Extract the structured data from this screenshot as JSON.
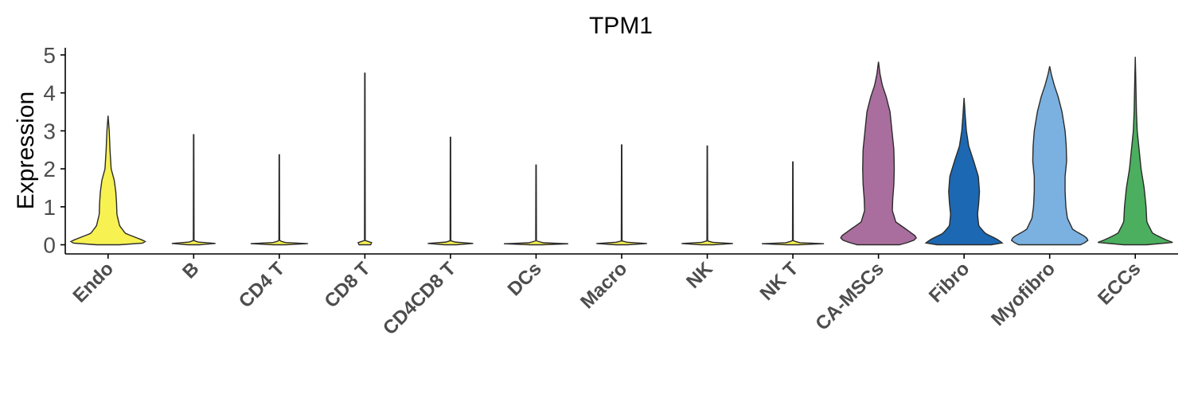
{
  "chart_data": {
    "type": "violin",
    "title": "TPM1",
    "ylabel": "Expression",
    "xlabel": "",
    "ylim": [
      -0.2,
      5.2
    ],
    "yticks": [
      0,
      1,
      2,
      3,
      4,
      5
    ],
    "grid": false,
    "legend": "none",
    "categories": [
      "Endo",
      "B",
      "CD4 T",
      "CD8 T",
      "CD4CD8 T",
      "DCs",
      "Macro",
      "NK",
      "NK T",
      "CA-MSCs",
      "Fibro",
      "Myofibro",
      "ECCs"
    ],
    "series": [
      {
        "category": "Endo",
        "color": "#F7F152",
        "max": 3.4,
        "density": [
          [
            0,
            0.3
          ],
          [
            0.05,
            1.0
          ],
          [
            0.1,
            0.95
          ],
          [
            0.2,
            0.7
          ],
          [
            0.3,
            0.45
          ],
          [
            0.5,
            0.3
          ],
          [
            0.8,
            0.23
          ],
          [
            1.1,
            0.22
          ],
          [
            1.4,
            0.2
          ],
          [
            1.7,
            0.16
          ],
          [
            2.0,
            0.08
          ],
          [
            2.5,
            0.05
          ],
          [
            3.0,
            0.03
          ],
          [
            3.4,
            0
          ]
        ]
      },
      {
        "category": "B",
        "color": "#F7F152",
        "max": 2.9,
        "density": [
          [
            0,
            0.15
          ],
          [
            0.02,
            1.0
          ],
          [
            0.05,
            0.2
          ],
          [
            0.1,
            0.01
          ],
          [
            2.9,
            0.005
          ]
        ]
      },
      {
        "category": "CD4 T",
        "color": "#F7F152",
        "max": 2.37,
        "density": [
          [
            0,
            0.15
          ],
          [
            0.02,
            1.0
          ],
          [
            0.05,
            0.2
          ],
          [
            0.1,
            0.01
          ],
          [
            2.37,
            0.005
          ]
        ]
      },
      {
        "category": "CD8 T",
        "color": "#F7F152",
        "max": 4.52,
        "density": [
          [
            0,
            0.15
          ],
          [
            0.02,
            1.0
          ],
          [
            0.05,
            0.2
          ],
          [
            0.1,
            0.01
          ],
          [
            4.52,
            0.005
          ]
        ]
      },
      {
        "category": "CD4CD8 T",
        "color": "#F7F152",
        "max": 2.83,
        "density": [
          [
            0,
            0.15
          ],
          [
            0.02,
            1.0
          ],
          [
            0.05,
            0.2
          ],
          [
            0.1,
            0.01
          ],
          [
            2.83,
            0.005
          ]
        ]
      },
      {
        "category": "DCs",
        "color": "#F7F152",
        "max": 2.1,
        "density": [
          [
            0,
            0.15
          ],
          [
            0.02,
            1.0
          ],
          [
            0.05,
            0.2
          ],
          [
            0.1,
            0.01
          ],
          [
            2.1,
            0.005
          ]
        ]
      },
      {
        "category": "Macro",
        "color": "#F7F152",
        "max": 2.63,
        "density": [
          [
            0,
            0.15
          ],
          [
            0.02,
            1.0
          ],
          [
            0.05,
            0.2
          ],
          [
            0.1,
            0.01
          ],
          [
            2.63,
            0.005
          ]
        ]
      },
      {
        "category": "NK",
        "color": "#F7F152",
        "max": 2.6,
        "density": [
          [
            0,
            0.15
          ],
          [
            0.02,
            1.0
          ],
          [
            0.05,
            0.2
          ],
          [
            0.1,
            0.01
          ],
          [
            2.6,
            0.005
          ]
        ]
      },
      {
        "category": "NK T",
        "color": "#F7F152",
        "max": 2.18,
        "density": [
          [
            0,
            0.15
          ],
          [
            0.02,
            1.0
          ],
          [
            0.05,
            0.2
          ],
          [
            0.1,
            0.01
          ],
          [
            2.18,
            0.005
          ]
        ]
      },
      {
        "category": "CA-MSCs",
        "color": "#A96E9E",
        "max": 4.82,
        "density": [
          [
            0,
            0.55
          ],
          [
            0.1,
            0.9
          ],
          [
            0.2,
            1.0
          ],
          [
            0.35,
            0.8
          ],
          [
            0.6,
            0.45
          ],
          [
            0.9,
            0.36
          ],
          [
            1.2,
            0.37
          ],
          [
            1.6,
            0.4
          ],
          [
            2.0,
            0.41
          ],
          [
            2.5,
            0.4
          ],
          [
            3.0,
            0.35
          ],
          [
            3.5,
            0.3
          ],
          [
            3.9,
            0.2
          ],
          [
            4.2,
            0.1
          ],
          [
            4.5,
            0.04
          ],
          [
            4.82,
            0
          ]
        ]
      },
      {
        "category": "Fibro",
        "color": "#1C68B2",
        "max": 3.87,
        "density": [
          [
            0,
            0.7
          ],
          [
            0.05,
            1.0
          ],
          [
            0.15,
            0.85
          ],
          [
            0.3,
            0.55
          ],
          [
            0.5,
            0.38
          ],
          [
            0.8,
            0.35
          ],
          [
            1.1,
            0.38
          ],
          [
            1.4,
            0.4
          ],
          [
            1.8,
            0.37
          ],
          [
            2.2,
            0.25
          ],
          [
            2.6,
            0.12
          ],
          [
            3.0,
            0.06
          ],
          [
            3.4,
            0.03
          ],
          [
            3.87,
            0
          ]
        ]
      },
      {
        "category": "Myofibro",
        "color": "#7BB1E0",
        "max": 4.7,
        "density": [
          [
            0,
            0.8
          ],
          [
            0.1,
            1.0
          ],
          [
            0.2,
            0.95
          ],
          [
            0.4,
            0.6
          ],
          [
            0.7,
            0.46
          ],
          [
            1.0,
            0.42
          ],
          [
            1.4,
            0.4
          ],
          [
            1.8,
            0.4
          ],
          [
            2.2,
            0.44
          ],
          [
            2.6,
            0.43
          ],
          [
            3.0,
            0.4
          ],
          [
            3.5,
            0.32
          ],
          [
            3.9,
            0.22
          ],
          [
            4.2,
            0.12
          ],
          [
            4.5,
            0.04
          ],
          [
            4.7,
            0
          ]
        ]
      },
      {
        "category": "ECCs",
        "color": "#4BAF5F",
        "max": 4.95,
        "density": [
          [
            0,
            0.3
          ],
          [
            0.05,
            1.0
          ],
          [
            0.15,
            0.75
          ],
          [
            0.3,
            0.45
          ],
          [
            0.6,
            0.3
          ],
          [
            1.0,
            0.28
          ],
          [
            1.5,
            0.23
          ],
          [
            2.0,
            0.15
          ],
          [
            2.5,
            0.1
          ],
          [
            3.0,
            0.05
          ],
          [
            3.5,
            0.03
          ],
          [
            4.0,
            0.02
          ],
          [
            4.5,
            0.01
          ],
          [
            4.95,
            0
          ]
        ]
      }
    ]
  }
}
